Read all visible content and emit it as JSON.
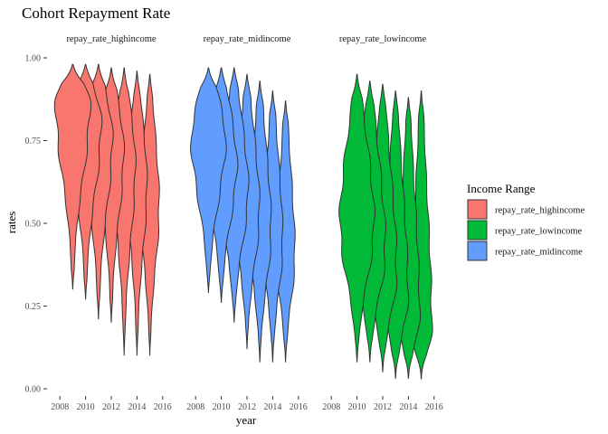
{
  "chart_data": {
    "type": "violin",
    "title": "Cohort Repayment Rate",
    "xlabel": "year",
    "ylabel": "rates",
    "ylim": [
      0,
      1
    ],
    "yticks": [
      "0.00",
      "0.25",
      "0.50",
      "0.75",
      "1.00"
    ],
    "xlim": [
      2007,
      2017
    ],
    "xticks": [
      "2008",
      "2010",
      "2012",
      "2014",
      "2016"
    ],
    "grid": false,
    "legend": {
      "title": "Income Range",
      "position": "right",
      "entries": [
        {
          "label": "repay_rate_highincome",
          "color": "#F8766D"
        },
        {
          "label": "repay_rate_lowincome",
          "color": "#00BA38"
        },
        {
          "label": "repay_rate_midincome",
          "color": "#619CFF"
        }
      ]
    },
    "panels": [
      {
        "name": "repay_rate_highincome",
        "color": "#F8766D",
        "violins": [
          {
            "year": 2009,
            "min": 0.3,
            "max": 0.98,
            "center": 0.86,
            "width": 0.55
          },
          {
            "year": 2010,
            "min": 0.27,
            "max": 0.98,
            "center": 0.8,
            "width": 0.5
          },
          {
            "year": 2011,
            "min": 0.21,
            "max": 0.98,
            "center": 0.76,
            "width": 0.45
          },
          {
            "year": 2012,
            "min": 0.2,
            "max": 0.97,
            "center": 0.72,
            "width": 0.4
          },
          {
            "year": 2013,
            "min": 0.1,
            "max": 0.97,
            "center": 0.68,
            "width": 0.36
          },
          {
            "year": 2014,
            "min": 0.1,
            "max": 0.96,
            "center": 0.62,
            "width": 0.32
          },
          {
            "year": 2015,
            "min": 0.1,
            "max": 0.95,
            "center": 0.55,
            "width": 0.3
          }
        ]
      },
      {
        "name": "repay_rate_midincome",
        "color": "#619CFF",
        "violins": [
          {
            "year": 2009,
            "min": 0.29,
            "max": 0.97,
            "center": 0.76,
            "width": 0.55
          },
          {
            "year": 2010,
            "min": 0.26,
            "max": 0.97,
            "center": 0.68,
            "width": 0.5
          },
          {
            "year": 2011,
            "min": 0.2,
            "max": 0.97,
            "center": 0.6,
            "width": 0.45
          },
          {
            "year": 2012,
            "min": 0.12,
            "max": 0.95,
            "center": 0.54,
            "width": 0.4
          },
          {
            "year": 2013,
            "min": 0.08,
            "max": 0.93,
            "center": 0.48,
            "width": 0.36
          },
          {
            "year": 2014,
            "min": 0.08,
            "max": 0.9,
            "center": 0.44,
            "width": 0.32
          },
          {
            "year": 2015,
            "min": 0.08,
            "max": 0.87,
            "center": 0.4,
            "width": 0.3
          }
        ]
      },
      {
        "name": "repay_rate_lowincome",
        "color": "#00BA38",
        "violins": [
          {
            "year": 2010,
            "min": 0.08,
            "max": 0.95,
            "center": 0.5,
            "width": 0.55
          },
          {
            "year": 2011,
            "min": 0.08,
            "max": 0.93,
            "center": 0.42,
            "width": 0.5
          },
          {
            "year": 2012,
            "min": 0.05,
            "max": 0.92,
            "center": 0.35,
            "width": 0.45
          },
          {
            "year": 2013,
            "min": 0.03,
            "max": 0.9,
            "center": 0.28,
            "width": 0.4
          },
          {
            "year": 2014,
            "min": 0.03,
            "max": 0.88,
            "center": 0.22,
            "width": 0.36
          },
          {
            "year": 2015,
            "min": 0.03,
            "max": 0.9,
            "center": 0.18,
            "width": 0.34
          }
        ]
      }
    ]
  }
}
